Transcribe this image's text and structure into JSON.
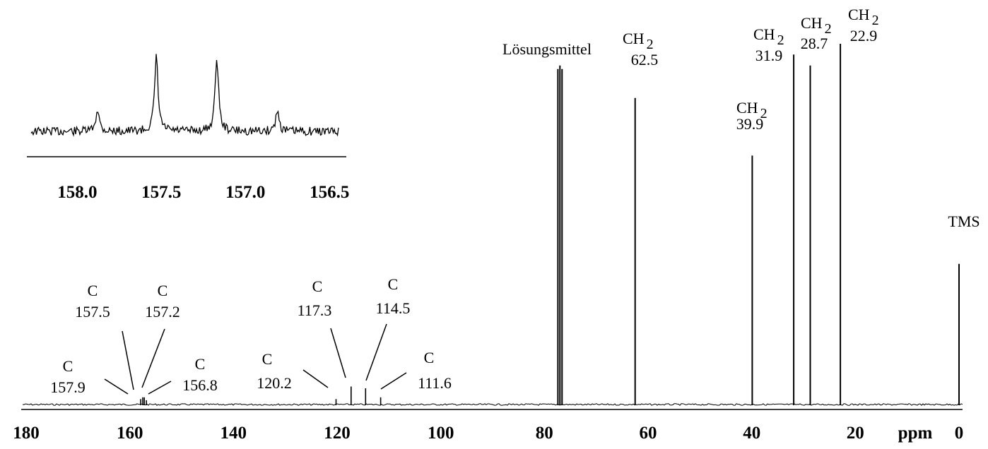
{
  "chart_data": [
    {
      "type": "line",
      "title": "",
      "xlabel": "ppm",
      "ylabel": "",
      "xlim": [
        180,
        0
      ],
      "x_reversed": true,
      "grid": false,
      "legend": "none",
      "xticks": [
        "180",
        "160",
        "140",
        "120",
        "100",
        "80",
        "60",
        "40",
        "20",
        "0"
      ],
      "peaks": [
        {
          "x": 157.9,
          "height": 0.015,
          "group": "C",
          "value": "157.9"
        },
        {
          "x": 157.5,
          "height": 0.02,
          "group": "C",
          "value": "157.5"
        },
        {
          "x": 157.2,
          "height": 0.02,
          "group": "C",
          "value": "157.2"
        },
        {
          "x": 156.8,
          "height": 0.012,
          "group": "C",
          "value": "156.8"
        },
        {
          "x": 120.2,
          "height": 0.015,
          "group": "C",
          "value": "120.2"
        },
        {
          "x": 117.3,
          "height": 0.05,
          "group": "C",
          "value": "117.3"
        },
        {
          "x": 114.5,
          "height": 0.045,
          "group": "C",
          "value": "114.5"
        },
        {
          "x": 111.6,
          "height": 0.02,
          "group": "C",
          "value": "111.6"
        },
        {
          "x": 77.4,
          "height": 0.93,
          "group": "Lösungsmittel",
          "value": ""
        },
        {
          "x": 77.0,
          "height": 0.94,
          "group": "",
          "value": ""
        },
        {
          "x": 76.6,
          "height": 0.93,
          "group": "",
          "value": ""
        },
        {
          "x": 62.5,
          "height": 0.85,
          "group": "CH 2",
          "value": "62.5"
        },
        {
          "x": 39.9,
          "height": 0.69,
          "group": "CH 2",
          "value": "39.9"
        },
        {
          "x": 31.9,
          "height": 0.97,
          "group": "CH 2",
          "value": "31.9"
        },
        {
          "x": 28.7,
          "height": 0.94,
          "group": "CH 2",
          "value": "28.7"
        },
        {
          "x": 22.9,
          "height": 1.0,
          "group": "CH 2",
          "value": "22.9"
        },
        {
          "x": 0.0,
          "height": 0.39,
          "group": "TMS",
          "value": ""
        }
      ]
    },
    {
      "type": "line",
      "title": "",
      "xlabel": "",
      "ylabel": "",
      "xlim": [
        158.3,
        156.4
      ],
      "x_reversed": true,
      "grid": false,
      "legend": "none",
      "xticks": [
        "158.0",
        "157.5",
        "157.0",
        "156.5"
      ],
      "peaks": [
        {
          "x": 157.88,
          "height": 0.3
        },
        {
          "x": 157.53,
          "height": 1.0
        },
        {
          "x": 157.17,
          "height": 1.0
        },
        {
          "x": 156.81,
          "height": 0.28
        }
      ]
    }
  ],
  "labels": {
    "c": "C",
    "ch": "CH",
    "sub2": "2",
    "solvent": "Lösungsmittel",
    "tms": "TMS",
    "v157_9": "157.9",
    "v157_5": "157.5",
    "v157_2": "157.2",
    "v156_8": "156.8",
    "v120_2": "120.2",
    "v117_3": "117.3",
    "v114_5": "114.5",
    "v111_6": "111.6",
    "v62_5": "62.5",
    "v39_9": "39.9",
    "v31_9": "31.9",
    "v28_7": "28.7",
    "v22_9": "22.9"
  }
}
